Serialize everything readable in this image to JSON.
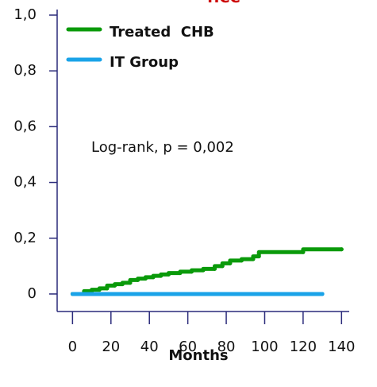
{
  "chart_data": {
    "type": "step",
    "title": "HCC",
    "title_color": "#cc0000",
    "xlabel": "Months",
    "annotation": "Log-rank, p = 0,002",
    "series": [
      {
        "name": "Treated  CHB",
        "color": "#0a9a0a",
        "x": [
          0,
          6,
          10,
          14,
          18,
          22,
          26,
          30,
          34,
          38,
          42,
          46,
          50,
          56,
          62,
          68,
          74,
          78,
          82,
          88,
          94,
          97,
          120,
          140
        ],
        "values": [
          0,
          0.01,
          0.015,
          0.02,
          0.03,
          0.035,
          0.04,
          0.05,
          0.055,
          0.06,
          0.065,
          0.07,
          0.075,
          0.08,
          0.085,
          0.09,
          0.1,
          0.11,
          0.12,
          0.125,
          0.135,
          0.15,
          0.16,
          0.16
        ]
      },
      {
        "name": "IT Group",
        "color": "#1aa3e8",
        "x": [
          0,
          130
        ],
        "values": [
          0,
          0
        ]
      }
    ],
    "xlim": [
      -8,
      144
    ],
    "xticks": [
      0,
      20,
      40,
      60,
      80,
      100,
      120,
      140
    ],
    "ylim": [
      -0.06,
      1.0
    ],
    "yticks": [
      0,
      {
        "value": 0.2,
        "label": "0,2"
      },
      {
        "value": 0.4,
        "label": "0,4"
      },
      {
        "value": 0.6,
        "label": "0,6"
      },
      {
        "value": 0.8,
        "label": "0,8"
      },
      {
        "value": 1.0,
        "label": "1,0"
      }
    ],
    "legend": "top-left"
  }
}
